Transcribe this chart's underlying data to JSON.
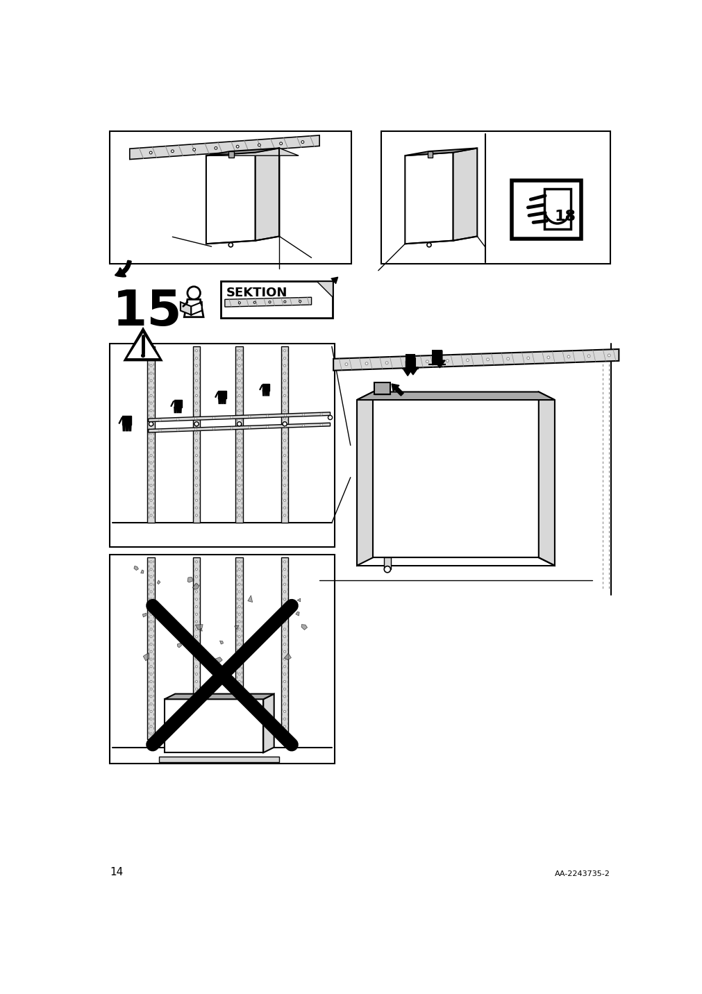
{
  "page_number": "14",
  "article_number": "AA-2243735-2",
  "step_number": "15",
  "bg": "#ffffff",
  "black": "#000000",
  "lgray": "#d8d8d8",
  "mgray": "#aaaaaa",
  "dgray": "#888888"
}
